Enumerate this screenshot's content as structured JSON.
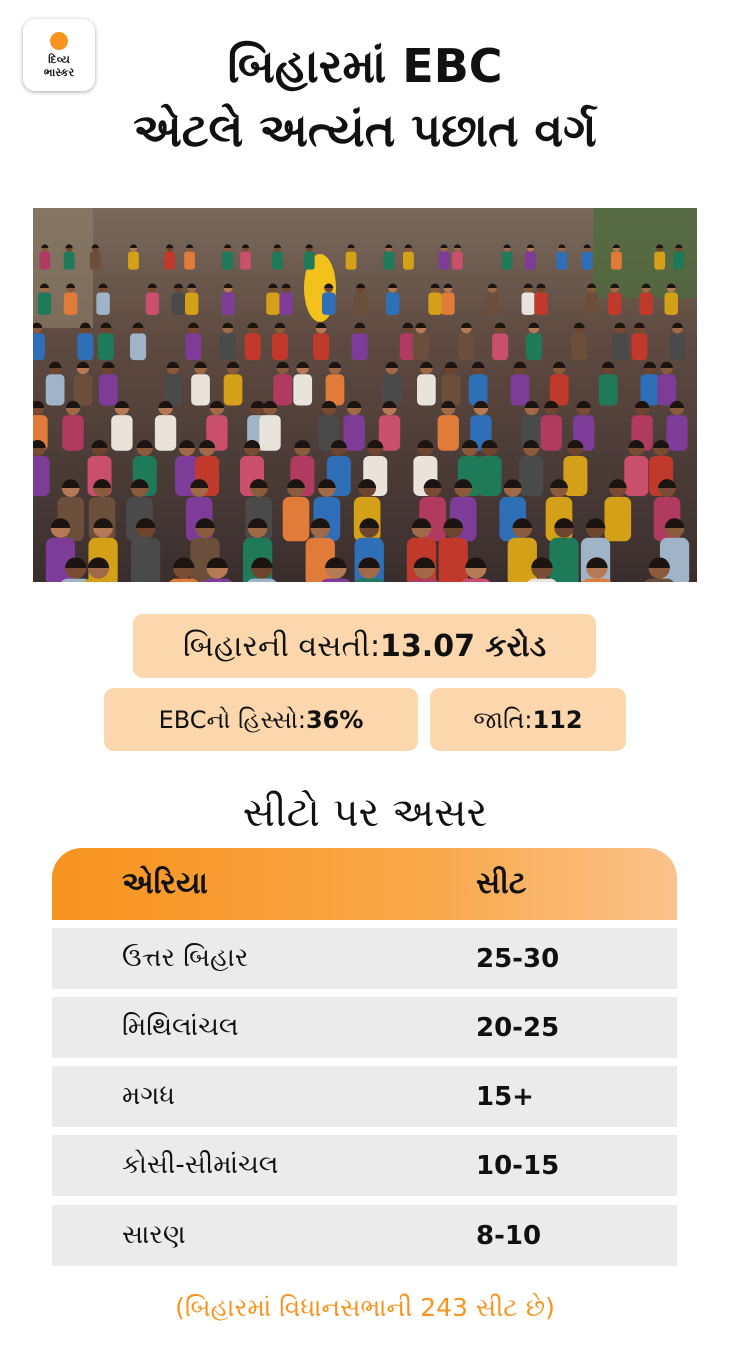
{
  "logo": {
    "line1": "દિવ્ય",
    "line2": "ભાસ્કર"
  },
  "title": {
    "line1": "બિહારમાં EBC",
    "line2": "એટલે અત્યંત પછાત વર્ગ"
  },
  "stats": {
    "population_label": "બિહારની વસતી: ",
    "population_value": "13.07 કરોડ",
    "ebc_label": "EBCનો હિસ્સો: ",
    "ebc_value": "36%",
    "caste_label": "જાતિ: ",
    "caste_value": "112"
  },
  "section_title": "સીટો પર અસર",
  "table": {
    "header_area": "એરિયા",
    "header_seats": "સીટ",
    "rows": [
      {
        "area": "ઉત્તર બિહાર",
        "seats": "25-30"
      },
      {
        "area": "મિથિલાંચલ",
        "seats": "20-25"
      },
      {
        "area": "મગધ",
        "seats": "15+"
      },
      {
        "area": "કોસી-સીમાંચલ",
        "seats": "10-15"
      },
      {
        "area": "સારણ",
        "seats": "8-10"
      }
    ]
  },
  "footnote": "(બિહારમાં વિધાનસભાની 243 સીટ છે)",
  "colors": {
    "accent": "#f7931e",
    "pill": "#fcd6ac",
    "row": "#ebebeb"
  }
}
